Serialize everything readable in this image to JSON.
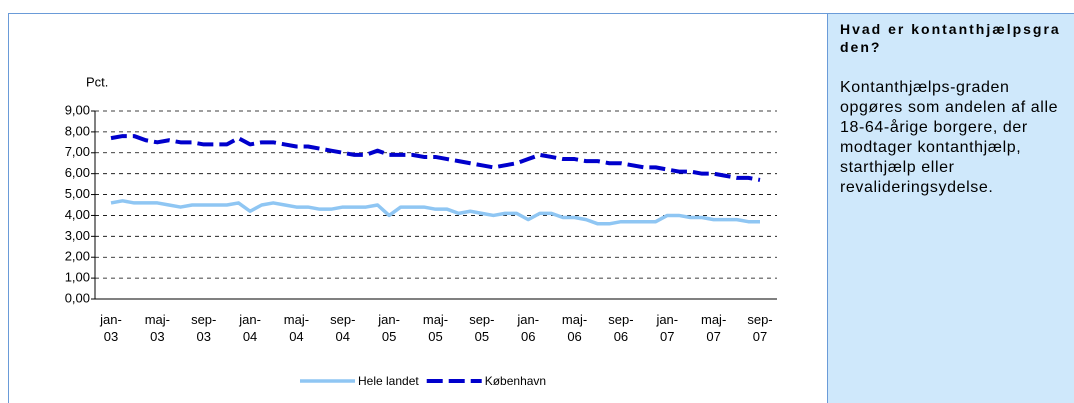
{
  "chart_data": {
    "type": "line",
    "ylabel": "Pct.",
    "categories": [
      "jan-03",
      null,
      null,
      null,
      "maj-03",
      null,
      null,
      null,
      "sep-03",
      null,
      null,
      null,
      "jan-04",
      null,
      null,
      null,
      "maj-04",
      null,
      null,
      null,
      "sep-04",
      null,
      null,
      null,
      "jan-05",
      null,
      null,
      null,
      "maj-05",
      null,
      null,
      null,
      "sep-05",
      null,
      null,
      null,
      "jan-06",
      null,
      null,
      null,
      "maj-06",
      null,
      null,
      null,
      "sep-06",
      null,
      null,
      null,
      "jan-07",
      null,
      null,
      null,
      "maj-07",
      null,
      null,
      null,
      "sep-07"
    ],
    "series": [
      {
        "name": "Hele landet",
        "color": "#8fc6f3",
        "dash": false,
        "values": [
          4.6,
          4.7,
          4.6,
          4.6,
          4.6,
          4.5,
          4.4,
          4.5,
          4.5,
          4.5,
          4.5,
          4.6,
          4.2,
          4.5,
          4.6,
          4.5,
          4.4,
          4.4,
          4.3,
          4.3,
          4.4,
          4.4,
          4.4,
          4.5,
          4.0,
          4.4,
          4.4,
          4.4,
          4.3,
          4.3,
          4.1,
          4.2,
          4.1,
          4.0,
          4.1,
          4.1,
          3.8,
          4.1,
          4.1,
          3.9,
          3.9,
          3.8,
          3.6,
          3.6,
          3.7,
          3.7,
          3.7,
          3.7,
          4.0,
          4.0,
          3.9,
          3.9,
          3.8,
          3.8,
          3.8,
          3.7,
          3.7
        ]
      },
      {
        "name": "København",
        "color": "#0000cc",
        "dash": true,
        "values": [
          7.7,
          7.8,
          7.8,
          7.6,
          7.5,
          7.6,
          7.5,
          7.5,
          7.4,
          7.4,
          7.4,
          7.7,
          7.4,
          7.5,
          7.5,
          7.4,
          7.3,
          7.3,
          7.2,
          7.1,
          7.0,
          6.9,
          6.9,
          7.1,
          6.9,
          6.9,
          6.9,
          6.8,
          6.8,
          6.7,
          6.6,
          6.5,
          6.4,
          6.3,
          6.4,
          6.5,
          6.7,
          6.9,
          6.8,
          6.7,
          6.7,
          6.6,
          6.6,
          6.5,
          6.5,
          6.4,
          6.3,
          6.3,
          6.2,
          6.1,
          6.1,
          6.0,
          6.0,
          5.9,
          5.8,
          5.8,
          5.7
        ]
      }
    ],
    "ylim": [
      0,
      9
    ],
    "yticks": [
      {
        "value": 0,
        "label": "0,00"
      },
      {
        "value": 1,
        "label": "1,00"
      },
      {
        "value": 2,
        "label": "2,00"
      },
      {
        "value": 3,
        "label": "3,00"
      },
      {
        "value": 4,
        "label": "4,00"
      },
      {
        "value": 5,
        "label": "5,00"
      },
      {
        "value": 6,
        "label": "6,00"
      },
      {
        "value": 7,
        "label": "7,00"
      },
      {
        "value": 8,
        "label": "8,00"
      },
      {
        "value": 9,
        "label": "9,00"
      }
    ],
    "grid": true,
    "legend": "bottom"
  },
  "sidebar": {
    "heading": "Hvad er kontanthjælpsgraden?",
    "text": "Kontanthjælps-graden opgøres som andelen af alle 18-64-årige borgere, der modtager kontanthjælp, starthjælp eller revalideringsydelse."
  }
}
